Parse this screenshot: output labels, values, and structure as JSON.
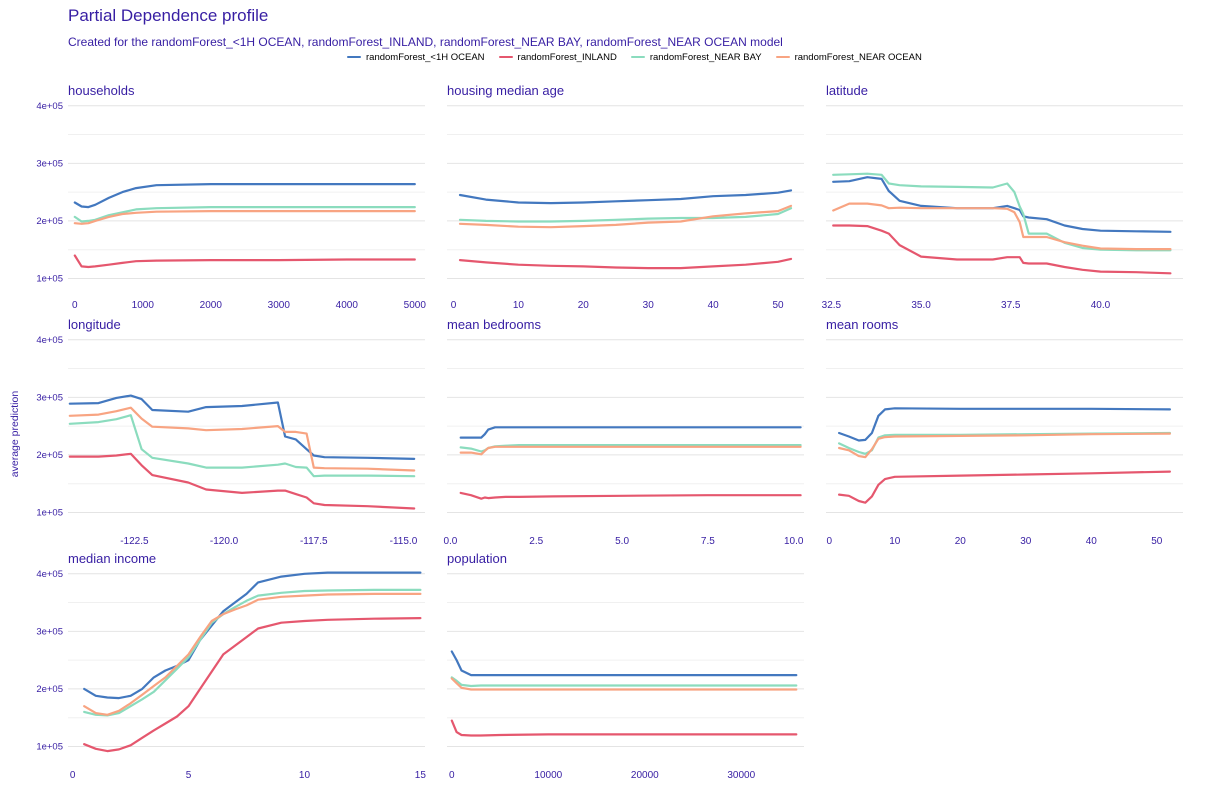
{
  "title": "Partial Dependence profile",
  "subtitle": "Created for the randomForest_<1H OCEAN, randomForest_INLAND, randomForest_NEAR BAY, randomForest_NEAR OCEAN model",
  "legend": [
    {
      "name": "randomForest_<1H OCEAN",
      "color": "#4378bf"
    },
    {
      "name": "randomForest_INLAND",
      "color": "#e5576e"
    },
    {
      "name": "randomForest_NEAR BAY",
      "color": "#8bdcbe"
    },
    {
      "name": "randomForest_NEAR OCEAN",
      "color": "#f8a482"
    }
  ],
  "chart_data": {
    "type": "line",
    "ylabel": "average prediction",
    "ylim": [
      80000,
      410000
    ],
    "yticks": [
      100000,
      200000,
      300000,
      400000
    ],
    "ytick_labels": [
      "1e+05",
      "2e+05",
      "3e+05",
      "4e+05"
    ],
    "series_names": [
      "randomForest_<1H OCEAN",
      "randomForest_INLAND",
      "randomForest_NEAR BAY",
      "randomForest_NEAR OCEAN"
    ],
    "grid": true,
    "legend_position": "top",
    "panels": [
      {
        "name": "households",
        "xlim": [
          -100,
          5150
        ],
        "xticks": [
          0,
          1000,
          2000,
          3000,
          4000,
          5000
        ],
        "xtick_labels": [
          "0",
          "1000",
          "2000",
          "3000",
          "4000",
          "5000"
        ],
        "x": [
          0,
          100,
          200,
          300,
          500,
          700,
          900,
          1200,
          2000,
          3000,
          4000,
          5000
        ],
        "series": [
          [
            232000,
            225000,
            224000,
            228000,
            240000,
            250000,
            257000,
            262000,
            264000,
            264000,
            264000,
            264000
          ],
          [
            140000,
            121000,
            120000,
            121000,
            124000,
            127000,
            130000,
            131000,
            132000,
            132000,
            133000,
            133000
          ],
          [
            207000,
            199000,
            200000,
            202000,
            210000,
            215000,
            220000,
            222000,
            224000,
            224000,
            224000,
            224000
          ],
          [
            196000,
            195000,
            196000,
            200000,
            207000,
            212000,
            214000,
            216000,
            217000,
            217000,
            217000,
            217000
          ]
        ]
      },
      {
        "name": "housing_median_age",
        "xlim": [
          -1,
          54
        ],
        "xticks": [
          0,
          10,
          20,
          30,
          40,
          50
        ],
        "xtick_labels": [
          "0",
          "10",
          "20",
          "30",
          "40",
          "50"
        ],
        "x": [
          1,
          5,
          10,
          15,
          20,
          25,
          30,
          35,
          40,
          45,
          50,
          52
        ],
        "series": [
          [
            245000,
            237000,
            232000,
            231000,
            232000,
            234000,
            236000,
            238000,
            243000,
            245000,
            249000,
            253000
          ],
          [
            132000,
            128000,
            124000,
            122000,
            121000,
            119000,
            118000,
            118000,
            121000,
            124000,
            129000,
            134000
          ],
          [
            202000,
            200000,
            199000,
            199000,
            200000,
            202000,
            204000,
            205000,
            205000,
            207000,
            212000,
            222000
          ],
          [
            195000,
            193000,
            190000,
            189000,
            191000,
            193000,
            197000,
            199000,
            208000,
            213000,
            217000,
            226000
          ]
        ]
      },
      {
        "name": "latitude",
        "xlim": [
          32.35,
          42.3
        ],
        "xticks": [
          32.5,
          35.0,
          37.5,
          40.0
        ],
        "xtick_labels": [
          "32.5",
          "35.0",
          "37.5",
          "40.0"
        ],
        "x": [
          32.55,
          33.0,
          33.5,
          33.9,
          34.1,
          34.4,
          35.0,
          36.0,
          37.0,
          37.4,
          37.6,
          37.75,
          37.85,
          38.0,
          38.5,
          39.0,
          39.5,
          40.0,
          41.0,
          41.95
        ],
        "series": [
          [
            268000,
            269000,
            276000,
            273000,
            252000,
            235000,
            226000,
            222000,
            222000,
            226000,
            222000,
            219000,
            208000,
            206000,
            203000,
            192000,
            186000,
            183000,
            182000,
            181000
          ],
          [
            192000,
            192000,
            191000,
            183000,
            178000,
            158000,
            138000,
            133000,
            133000,
            137000,
            137000,
            137000,
            127000,
            126000,
            126000,
            120000,
            115000,
            112000,
            111000,
            109000
          ],
          [
            280000,
            281000,
            282000,
            280000,
            265000,
            262000,
            260000,
            259000,
            258000,
            265000,
            250000,
            225000,
            212000,
            178000,
            178000,
            162000,
            153000,
            150000,
            149000,
            149000
          ],
          [
            218000,
            230000,
            230000,
            227000,
            222000,
            223000,
            222000,
            222000,
            222000,
            221000,
            215000,
            198000,
            172000,
            172000,
            172000,
            163000,
            157000,
            152000,
            151000,
            151000
          ]
        ]
      },
      {
        "name": "longitude",
        "xlim": [
          -124.35,
          -114.4
        ],
        "xticks": [
          -122.5,
          -120.0,
          -117.5,
          -115.0
        ],
        "xtick_labels": [
          "-122.5",
          "-120.0",
          "-117.5",
          "-115.0"
        ],
        "x": [
          -124.3,
          -123.5,
          -123.0,
          -122.6,
          -122.3,
          -122.0,
          -121.0,
          -120.5,
          -119.5,
          -118.5,
          -118.3,
          -118.0,
          -117.7,
          -117.5,
          -117.2,
          -116.0,
          -114.7
        ],
        "series": [
          [
            289000,
            290000,
            299000,
            303000,
            297000,
            278000,
            275000,
            283000,
            285000,
            291000,
            232000,
            227000,
            210000,
            199000,
            196000,
            195000,
            193000
          ],
          [
            197000,
            197000,
            199000,
            202000,
            182000,
            165000,
            152000,
            140000,
            134000,
            138000,
            138000,
            132000,
            126000,
            116000,
            113000,
            111000,
            107000
          ],
          [
            254000,
            257000,
            262000,
            269000,
            210000,
            195000,
            185000,
            178000,
            178000,
            183000,
            185000,
            179000,
            178000,
            163000,
            164000,
            164000,
            163000
          ],
          [
            268000,
            270000,
            276000,
            282000,
            263000,
            249000,
            246000,
            243000,
            245000,
            250000,
            240000,
            240000,
            237000,
            178000,
            177000,
            176000,
            173000
          ]
        ]
      },
      {
        "name": "mean_bedrooms",
        "xlim": [
          -0.1,
          10.3
        ],
        "xticks": [
          0.0,
          2.5,
          5.0,
          7.5,
          10.0
        ],
        "xtick_labels": [
          "0.0",
          "2.5",
          "5.0",
          "7.5",
          "10.0"
        ],
        "x": [
          0.3,
          0.6,
          0.9,
          1.0,
          1.1,
          1.3,
          1.6,
          2.0,
          3.0,
          5.0,
          7.5,
          10.2
        ],
        "series": [
          [
            230000,
            230000,
            230000,
            236000,
            244000,
            248000,
            248000,
            248000,
            248000,
            248000,
            248000,
            248000
          ],
          [
            134000,
            130000,
            124000,
            126000,
            125000,
            126000,
            127000,
            127000,
            128000,
            129000,
            130000,
            130000
          ],
          [
            213000,
            211000,
            206000,
            208000,
            212000,
            215000,
            216000,
            217000,
            217000,
            217000,
            217000,
            217000
          ],
          [
            204000,
            204000,
            201000,
            207000,
            212000,
            214000,
            214000,
            214000,
            214000,
            214000,
            214000,
            214000
          ]
        ]
      },
      {
        "name": "mean_rooms",
        "xlim": [
          -0.5,
          54
        ],
        "xticks": [
          0,
          10,
          20,
          30,
          40,
          50
        ],
        "xtick_labels": [
          "0",
          "10",
          "20",
          "30",
          "40",
          "50"
        ],
        "x": [
          1.5,
          3,
          4.5,
          5.5,
          6.5,
          7.5,
          8.5,
          10,
          20,
          30,
          40,
          52
        ],
        "series": [
          [
            238000,
            232000,
            225000,
            226000,
            238000,
            268000,
            279000,
            281000,
            280000,
            280000,
            280000,
            279000
          ],
          [
            131000,
            129000,
            120000,
            117000,
            128000,
            148000,
            158000,
            162000,
            164000,
            166000,
            168000,
            171000
          ],
          [
            220000,
            212000,
            205000,
            202000,
            208000,
            230000,
            234000,
            235000,
            235000,
            236000,
            237000,
            238000
          ],
          [
            212000,
            208000,
            198000,
            196000,
            210000,
            228000,
            231000,
            232000,
            233000,
            234000,
            236000,
            237000
          ]
        ]
      },
      {
        "name": "median_income",
        "xlim": [
          -0.2,
          15.2
        ],
        "xticks": [
          0,
          5,
          10,
          15
        ],
        "xtick_labels": [
          "0",
          "5",
          "10",
          "15"
        ],
        "x": [
          0.5,
          1.0,
          1.5,
          2.0,
          2.5,
          3.0,
          3.5,
          4.0,
          4.5,
          5.0,
          5.5,
          6.0,
          6.5,
          7.0,
          7.5,
          8.0,
          9.0,
          10.0,
          11.0,
          13.0,
          15.0
        ],
        "series": [
          [
            200000,
            188000,
            185000,
            184000,
            188000,
            200000,
            220000,
            232000,
            240000,
            250000,
            285000,
            310000,
            335000,
            350000,
            365000,
            385000,
            395000,
            400000,
            402000,
            402000,
            402000
          ],
          [
            104000,
            96000,
            92000,
            95000,
            102000,
            115000,
            128000,
            140000,
            152000,
            170000,
            200000,
            230000,
            260000,
            275000,
            290000,
            305000,
            315000,
            318000,
            320000,
            322000,
            323000
          ],
          [
            160000,
            155000,
            154000,
            158000,
            170000,
            182000,
            195000,
            215000,
            235000,
            255000,
            285000,
            315000,
            330000,
            342000,
            353000,
            362000,
            367000,
            370000,
            371000,
            372000,
            372000
          ],
          [
            170000,
            158000,
            155000,
            162000,
            175000,
            190000,
            205000,
            220000,
            240000,
            260000,
            290000,
            318000,
            330000,
            338000,
            345000,
            355000,
            360000,
            362000,
            364000,
            365000,
            365000
          ]
        ]
      },
      {
        "name": "population",
        "xlim": [
          -500,
          36500
        ],
        "xticks": [
          0,
          10000,
          20000,
          30000
        ],
        "xtick_labels": [
          "0",
          "10000",
          "20000",
          "30000"
        ],
        "x": [
          0,
          500,
          1000,
          2000,
          3000,
          5000,
          10000,
          20000,
          30000,
          35700
        ],
        "series": [
          [
            265000,
            250000,
            232000,
            224000,
            224000,
            224000,
            224000,
            224000,
            224000,
            224000
          ],
          [
            145000,
            125000,
            120000,
            119000,
            119000,
            120000,
            121000,
            121000,
            121000,
            121000
          ],
          [
            220000,
            214000,
            207000,
            205000,
            206000,
            206000,
            206000,
            206000,
            206000,
            206000
          ],
          [
            218000,
            210000,
            202000,
            199000,
            199000,
            199000,
            199000,
            199000,
            199000,
            199000
          ]
        ]
      }
    ]
  }
}
